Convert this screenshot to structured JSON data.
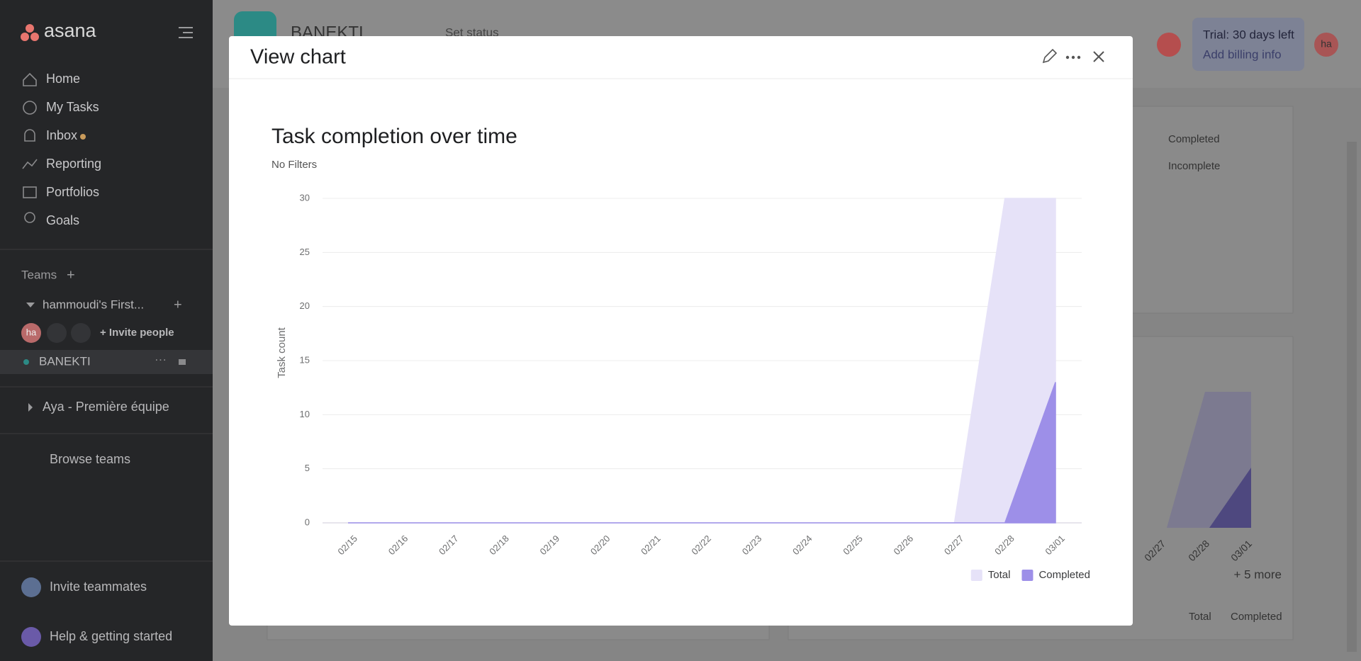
{
  "sidebar": {
    "logo": "asana",
    "nav": [
      "Home",
      "My Tasks",
      "Inbox",
      "Reporting",
      "Portfolios",
      "Goals"
    ],
    "teams_label": "Teams",
    "team": "hammoudi's First...",
    "avatar": "ha",
    "invite_people": "+ Invite people",
    "project": "BANEKTI",
    "other_team": "Aya - Première équipe",
    "browse_teams": "Browse teams",
    "invite_teammates": "Invite teammates",
    "help": "Help & getting started"
  },
  "background": {
    "project_title": "BANEKTI",
    "set_status": "Set status",
    "trial": "Trial: 30 days left",
    "billing": "Add billing info",
    "avatar": "ha",
    "legend_top": [
      "Completed",
      "Incomplete"
    ],
    "mini_x": [
      "02/27",
      "02/28",
      "03/01"
    ],
    "more": "+ 5 more",
    "legend_bottom": [
      "Total",
      "Completed"
    ]
  },
  "modal": {
    "title": "View chart"
  },
  "chart_data": {
    "type": "area",
    "title": "Task completion over time",
    "subtitle": "No Filters",
    "y_label": "Task count",
    "categories": [
      "02/15",
      "02/16",
      "02/17",
      "02/18",
      "02/19",
      "02/20",
      "02/21",
      "02/22",
      "02/23",
      "02/24",
      "02/25",
      "02/26",
      "02/27",
      "02/28",
      "03/01"
    ],
    "series": [
      {
        "name": "Total",
        "color": "#e6e2f8",
        "values": [
          0,
          0,
          0,
          0,
          0,
          0,
          0,
          0,
          0,
          0,
          0,
          0,
          0,
          30,
          30
        ]
      },
      {
        "name": "Completed",
        "color": "#9d8fe8",
        "values": [
          0,
          0,
          0,
          0,
          0,
          0,
          0,
          0,
          0,
          0,
          0,
          0,
          0,
          0,
          13
        ]
      }
    ],
    "ylim": [
      0,
      30
    ],
    "yticks": [
      0,
      5,
      10,
      15,
      20,
      25,
      30
    ],
    "grid": true,
    "legend": "bottom-right"
  }
}
